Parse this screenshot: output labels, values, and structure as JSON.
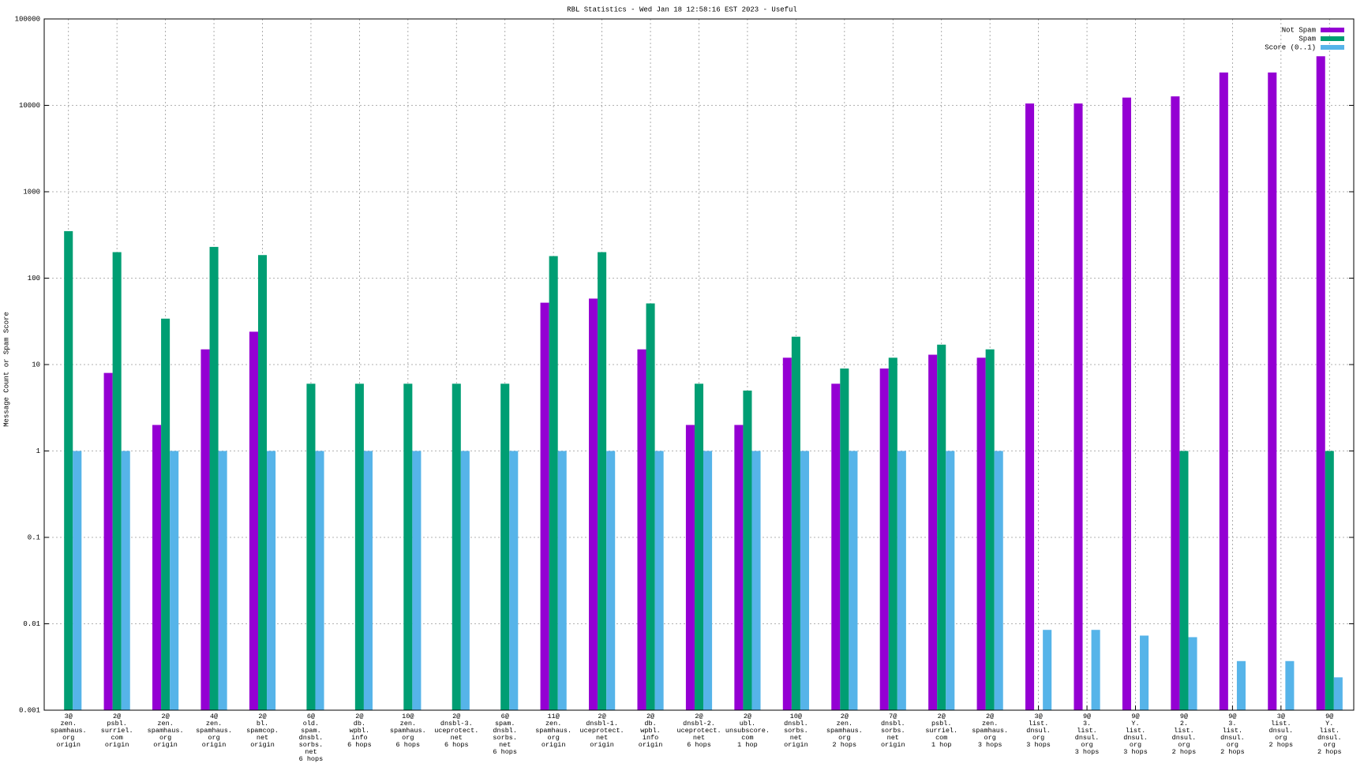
{
  "chart_data": {
    "type": "bar",
    "title": "RBL Statistics - Wed Jan 18 12:58:16 EST 2023 - Useful",
    "y_label": "Message Count or Spam Score",
    "log_scale": true,
    "grid": true,
    "legend_position": "top-right",
    "categories": [
      "3@\nzen.\nspamhaus.\norg\norigin",
      "2@\npsbl.\nsurriel.\ncom\norigin",
      "2@\nzen.\nspamhaus.\norg\norigin",
      "4@\nzen.\nspamhaus.\norg\norigin",
      "2@\nbl.\nspamcop.\nnet\norigin",
      "6@\nold.\nspam.\ndnsbl.\nsorbs.\nnet\n6 hops",
      "2@\ndb.\nwpbl.\ninfo\n6 hops",
      "10@\nzen.\nspamhaus.\norg\n6 hops",
      "2@\ndnsbl-3.\nuceprotect.\nnet\n6 hops",
      "6@\nspam.\ndnsbl.\nsorbs.\nnet\n6 hops",
      "11@\nzen.\nspamhaus.\norg\norigin",
      "2@\ndnsbl-1.\nuceprotect.\nnet\norigin",
      "2@\ndb.\nwpbl.\ninfo\norigin",
      "2@\ndnsbl-2.\nuceprotect.\nnet\n6 hops",
      "2@\nubl.\nunsubscore.\ncom\n1 hop",
      "10@\ndnsbl.\nsorbs.\nnet\norigin",
      "2@\nzen.\nspamhaus.\norg\n2 hops",
      "7@\ndnsbl.\nsorbs.\nnet\norigin",
      "2@\npsbl.\nsurriel.\ncom\n1 hop",
      "2@\nzen.\nspamhaus.\norg\n3 hops",
      "3@\nlist.\ndnsul.\norg\n3 hops",
      "9@\n3.\nlist.\ndnsul.\norg\n3 hops",
      "9@\nY.\nlist.\ndnsul.\norg\n3 hops",
      "9@\n2.\nlist.\ndnsul.\norg\n2 hops",
      "9@\n3.\nlist.\ndnsul.\norg\n2 hops",
      "3@\nlist.\ndnsul.\norg\n2 hops",
      "9@\nY.\nlist.\ndnsul.\norg\n2 hops"
    ],
    "series": [
      {
        "name": "Not Spam",
        "color": "#9400d3",
        "values": [
          null,
          8,
          2,
          15,
          24,
          null,
          null,
          null,
          null,
          null,
          52,
          58,
          15,
          2,
          2,
          12,
          6,
          9,
          13,
          12,
          10500,
          10500,
          12300,
          12700,
          24000,
          24000,
          37000
        ]
      },
      {
        "name": "Spam",
        "color": "#009e73",
        "values": [
          350,
          200,
          34,
          230,
          185,
          6,
          6,
          6,
          6,
          6,
          180,
          200,
          51,
          6,
          5,
          21,
          9,
          12,
          17,
          15,
          null,
          null,
          null,
          1,
          null,
          null,
          1
        ]
      },
      {
        "name": "Score (0..1)",
        "color": "#56b4e9",
        "values": [
          1,
          1,
          1,
          1,
          1,
          1,
          1,
          1,
          1,
          1,
          1,
          1,
          1,
          1,
          1,
          1,
          1,
          1,
          1,
          1,
          0.0085,
          0.0085,
          0.0073,
          0.007,
          0.0037,
          0.0037,
          0.0024
        ]
      }
    ],
    "ylim": [
      0.001,
      100000
    ],
    "yticks": [
      0.001,
      0.01,
      0.1,
      1,
      10,
      100,
      1000,
      10000,
      100000
    ]
  }
}
